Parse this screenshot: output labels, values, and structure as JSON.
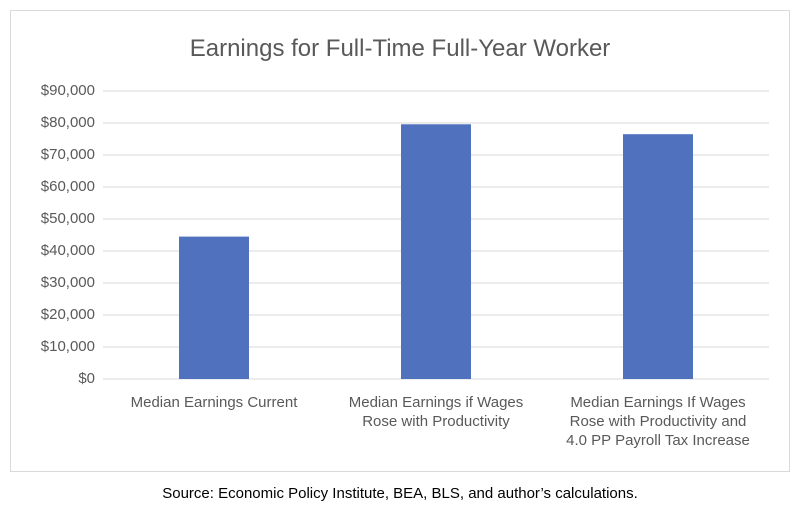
{
  "chart_data": {
    "type": "bar",
    "title": "Earnings for Full-Time Full-Year Worker",
    "xlabel": "",
    "ylabel": "",
    "categories": [
      "Median Earnings Current",
      "Median Earnings if Wages Rose with Productivity",
      "Median Earnings If Wages Rose with Productivity and 4.0 PP Payroll Tax Increase"
    ],
    "category_lines": [
      [
        "Median Earnings Current"
      ],
      [
        "Median Earnings if Wages",
        "Rose with Productivity"
      ],
      [
        "Median Earnings If Wages",
        "Rose with Productivity and",
        "4.0 PP Payroll Tax Increase"
      ]
    ],
    "values": [
      44500,
      79600,
      76500
    ],
    "ylim": [
      0,
      90000
    ],
    "y_ticks": [
      0,
      10000,
      20000,
      30000,
      40000,
      50000,
      60000,
      70000,
      80000,
      90000
    ],
    "y_tick_labels": [
      "$0",
      "$10,000",
      "$20,000",
      "$30,000",
      "$40,000",
      "$50,000",
      "$60,000",
      "$70,000",
      "$80,000",
      "$90,000"
    ],
    "grid": true,
    "legend": "none",
    "bar_color": "#4f71be",
    "grid_color": "#d9d9d9"
  },
  "source": "Source: Economic Policy Institute, BEA, BLS, and author’s calculations."
}
